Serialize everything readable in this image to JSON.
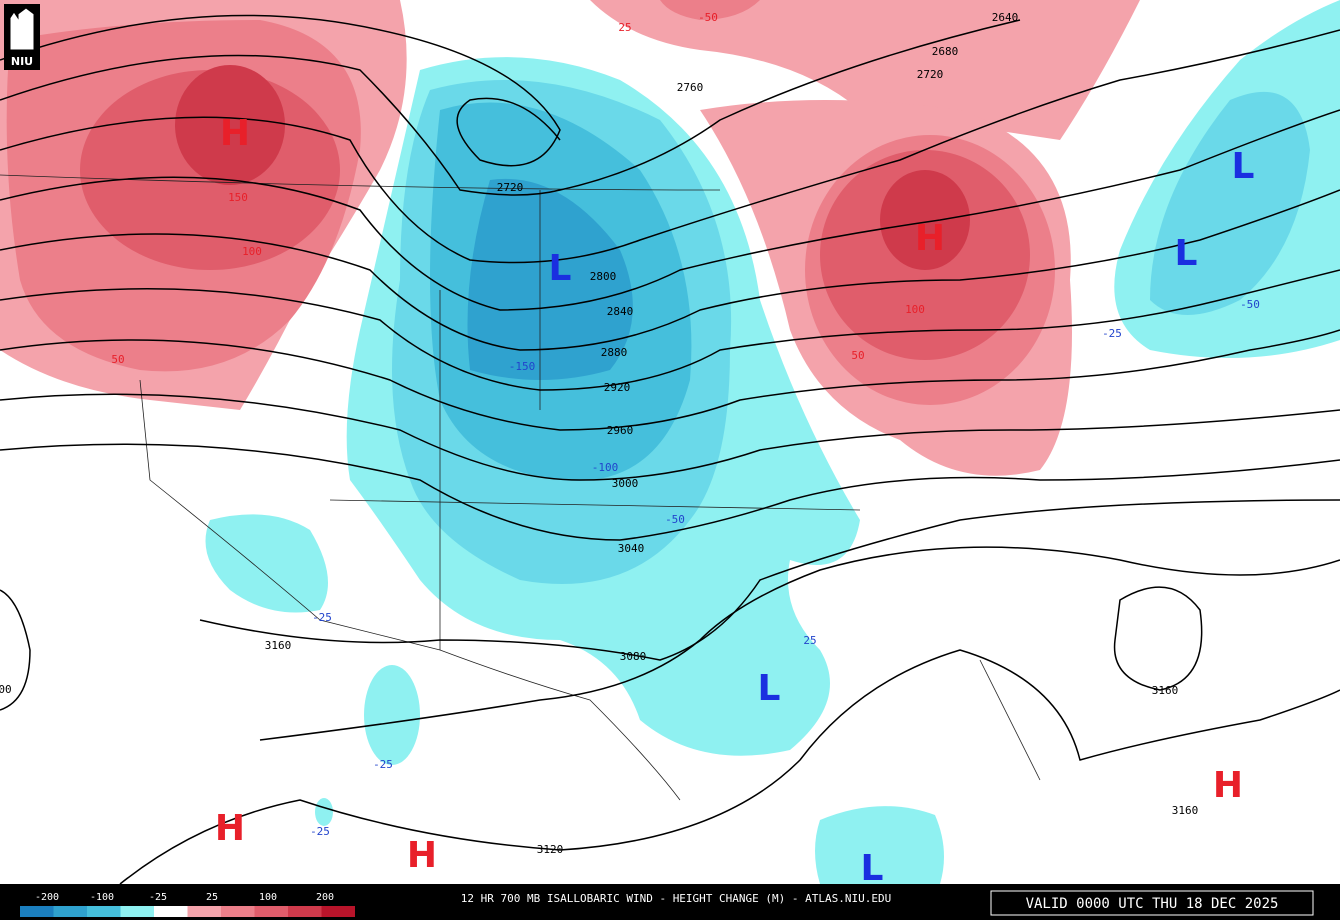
{
  "logo": "NIU",
  "map": {
    "height_contour_labels": [
      "2640",
      "2680",
      "2720",
      "2760",
      "2720",
      "2800",
      "2840",
      "2880",
      "2920",
      "2960",
      "3000",
      "3040",
      "3080",
      "3160",
      "3160",
      "3160",
      "3120",
      "00"
    ],
    "change_labels": [
      "25",
      "-50",
      "150",
      "100",
      "50",
      "100",
      "50",
      "-150",
      "-100",
      "-50",
      "-25",
      "-50",
      "-25",
      "25",
      "-25",
      "-25"
    ],
    "centers": [
      "H",
      "H",
      "L",
      "L",
      "L",
      "L",
      "H",
      "H",
      "H",
      "L"
    ]
  },
  "colorbar": {
    "labels": [
      "-200",
      "-100",
      "-25",
      "25",
      "100",
      "200"
    ]
  },
  "footer": {
    "title": "12 HR 700 MB ISALLOBARIC WIND - HEIGHT CHANGE (M) - ATLAS.NIU.EDU",
    "valid": "VALID 0000 UTC THU 18 DEC 2025"
  }
}
